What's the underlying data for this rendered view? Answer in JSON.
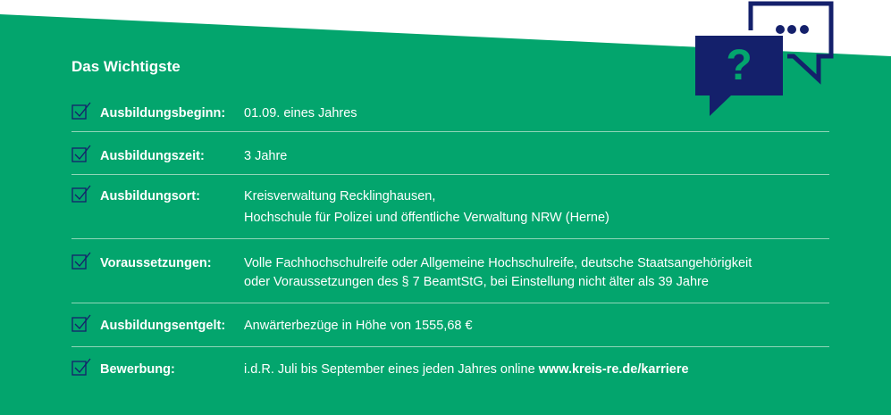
{
  "colors": {
    "green": "#03a56d",
    "navy": "#14206b",
    "white": "#ffffff"
  },
  "title": "Das Wichtigste",
  "icons": {
    "header": "question-and-chat-bubbles-icon",
    "row": "checkbox-checked-icon"
  },
  "rows": [
    {
      "label": "Ausbildungsbeginn:",
      "lines": [
        "01.09. eines Jahres"
      ]
    },
    {
      "label": "Ausbildungszeit:",
      "lines": [
        "3 Jahre"
      ]
    },
    {
      "label": "Ausbildungsort:",
      "lines": [
        "Kreisverwaltung Recklinghausen,",
        "Hochschule für Polizei und öffentliche Verwaltung NRW (Herne)"
      ]
    },
    {
      "label": "Voraussetzungen:",
      "lines": [
        "Volle Fachhochschulreife oder Allgemeine Hochschulreife, deutsche Staatsangehörigkeit",
        "oder Voraussetzungen des § 7 BeamtStG, bei Einstellung nicht älter als 39 Jahre"
      ]
    },
    {
      "label": "Ausbildungsentgelt:",
      "lines": [
        "Anwärterbezüge in Höhe von 1555,68 €"
      ]
    },
    {
      "label": "Bewerbung:",
      "lines": [
        "i.d.R. Juli bis September eines jeden Jahres online "
      ],
      "link": "www.kreis-re.de/karriere"
    }
  ]
}
